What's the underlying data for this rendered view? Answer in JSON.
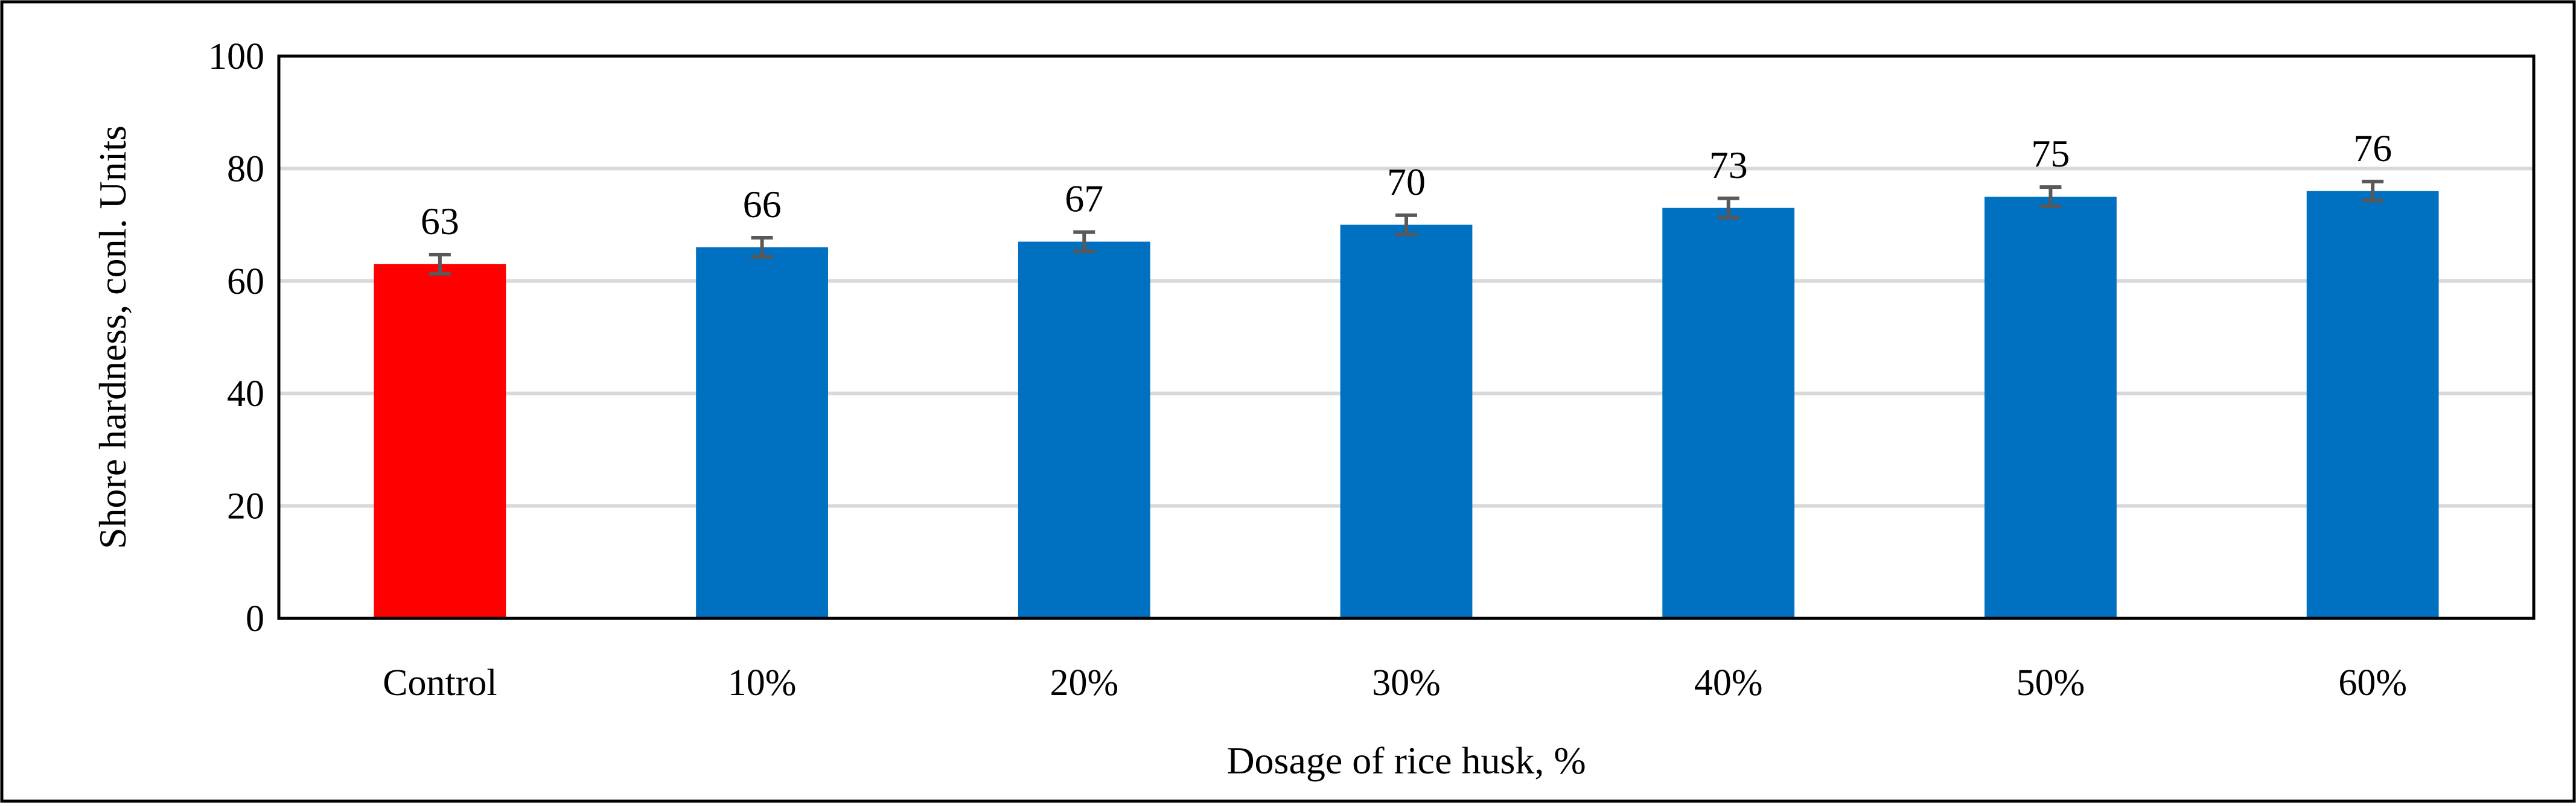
{
  "chart_data": {
    "type": "bar",
    "categories": [
      "Control",
      "10%",
      "20%",
      "30%",
      "40%",
      "50%",
      "60%"
    ],
    "values": [
      63,
      66,
      67,
      70,
      73,
      75,
      76
    ],
    "error": [
      1.7,
      1.7,
      1.7,
      1.7,
      1.7,
      1.7,
      1.7
    ],
    "data_labels": [
      "63",
      "66",
      "67",
      "70",
      "73",
      "75",
      "76"
    ],
    "colors": [
      "#ff0000",
      "#0070c0",
      "#0070c0",
      "#0070c0",
      "#0070c0",
      "#0070c0",
      "#0070c0"
    ],
    "error_bar_color": "#595959",
    "xlabel": "Dosage of rice husk, %",
    "ylabel": "Shore hardness, conl. Units",
    "ylim": [
      0,
      100
    ],
    "yticks": [
      0,
      20,
      40,
      60,
      80,
      100
    ],
    "ytick_labels": [
      "0",
      "20",
      "40",
      "60",
      "80",
      "100"
    ],
    "grid": true,
    "grid_color": "#d9d9d9",
    "legend": "none"
  }
}
